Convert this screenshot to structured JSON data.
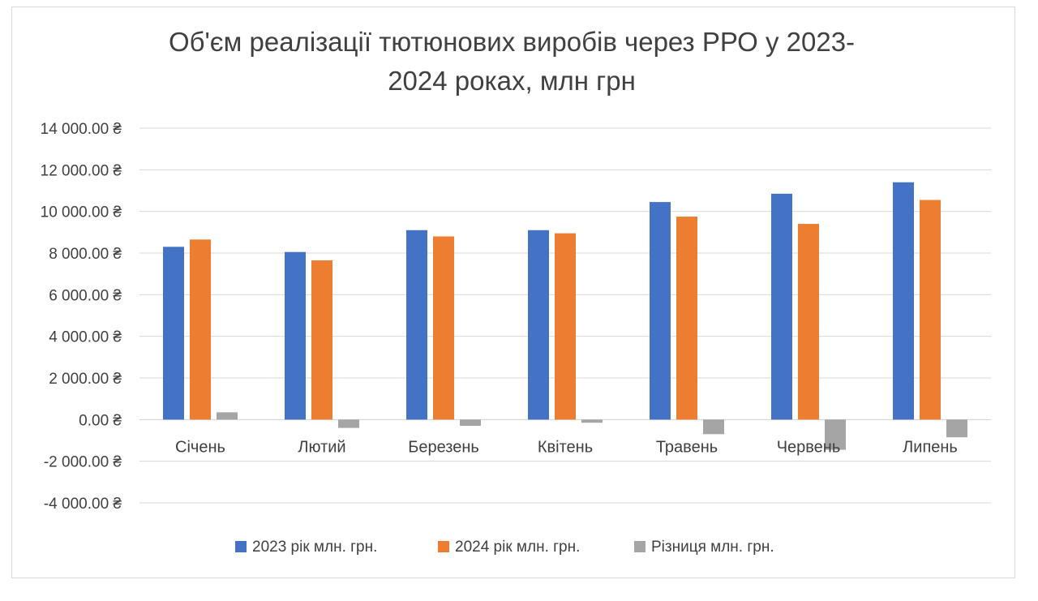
{
  "chart_data": {
    "type": "bar",
    "title": "Об'єм реалізації тютюнових виробів через РРО у 2023-2024 роках, млн грн",
    "title_lines": [
      "Об'єм реалізації тютюнових виробів через РРО у 2023-",
      "2024 роках, млн грн"
    ],
    "categories": [
      "Січень",
      "Лютий",
      "Березень",
      "Квітень",
      "Травень",
      "Червень",
      "Липень"
    ],
    "series": [
      {
        "name": "2023 рік млн. грн.",
        "color": "#4472C4",
        "values": [
          8300,
          8050,
          9100,
          9100,
          10450,
          10850,
          11400
        ]
      },
      {
        "name": "2024 рік млн. грн.",
        "color": "#ED7D31",
        "values": [
          8650,
          7650,
          8800,
          8950,
          9750,
          9400,
          10550
        ]
      },
      {
        "name": "Різниця млн. грн.",
        "color": "#A5A5A5",
        "values": [
          350,
          -400,
          -300,
          -150,
          -700,
          -1450,
          -850
        ]
      }
    ],
    "ylim": [
      -4000,
      14000
    ],
    "yticks": [
      14000,
      12000,
      10000,
      8000,
      6000,
      4000,
      2000,
      0,
      -2000,
      -4000
    ],
    "ytick_labels": [
      "14 000.00 ₴",
      "12 000.00 ₴",
      "10 000.00 ₴",
      "8 000.00 ₴",
      "6 000.00 ₴",
      "4 000.00 ₴",
      "2 000.00 ₴",
      "0.00 ₴",
      "-2 000.00 ₴",
      "-4 000.00 ₴"
    ],
    "grid": true,
    "legend": "bottom",
    "xlabel": "",
    "ylabel": ""
  }
}
